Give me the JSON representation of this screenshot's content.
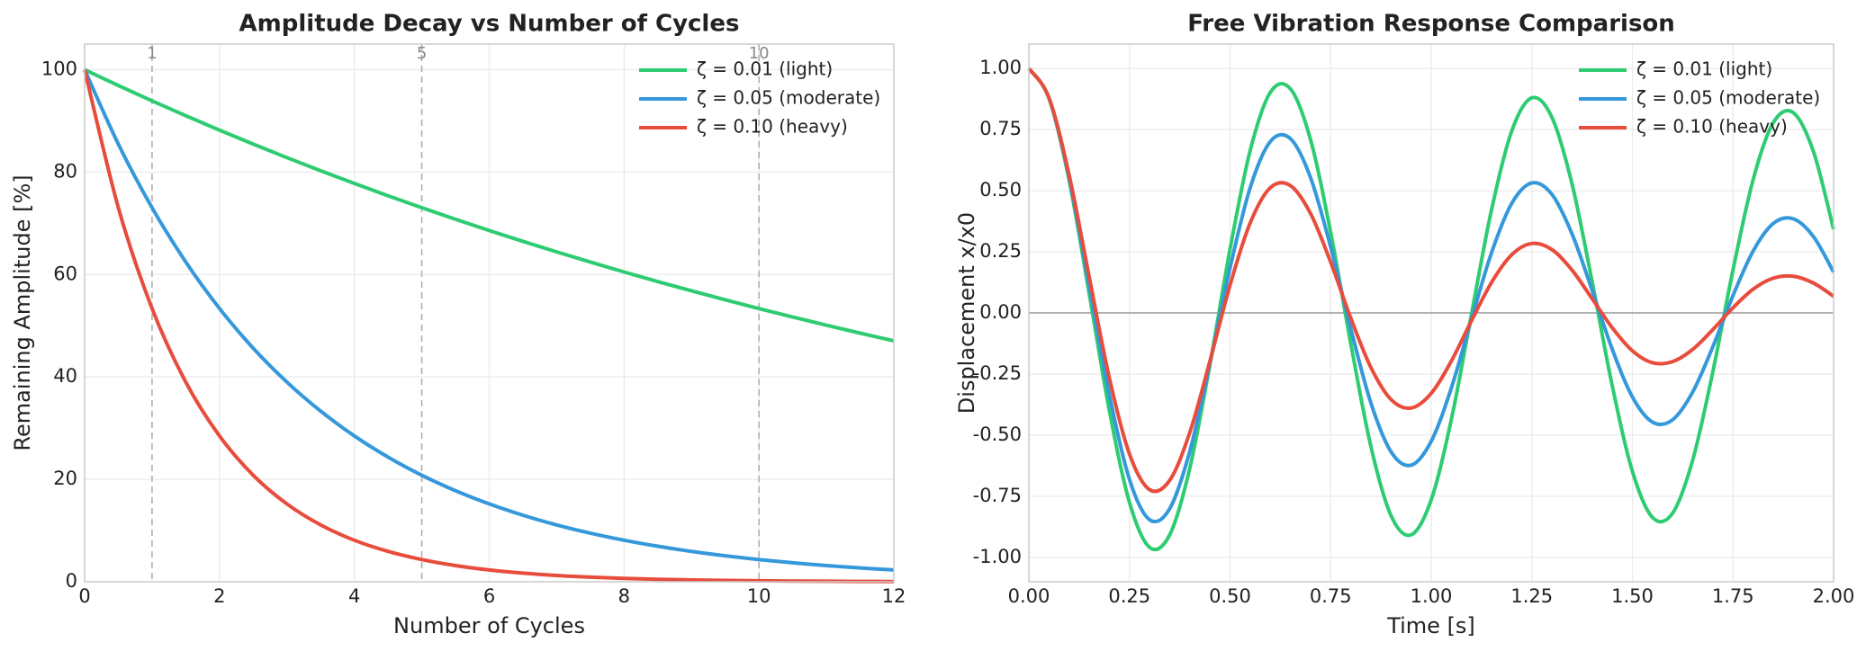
{
  "chart_data": [
    {
      "type": "line",
      "title": "Amplitude Decay vs Number of Cycles",
      "xlabel": "Number of Cycles",
      "ylabel": "Remaining Amplitude [%]",
      "x": [
        0,
        0.5,
        1,
        1.5,
        2,
        2.5,
        3,
        3.5,
        4,
        4.5,
        5,
        5.5,
        6,
        6.5,
        7,
        7.5,
        8,
        8.5,
        9,
        9.5,
        10,
        10.5,
        11,
        11.5,
        12
      ],
      "series": [
        {
          "name": "ζ = 0.01 (light)",
          "color": "#2ecc71",
          "values": [
            100,
            96.91,
            93.91,
            91.01,
            88.19,
            85.47,
            82.82,
            80.26,
            77.78,
            75.38,
            73.04,
            70.78,
            68.59,
            66.47,
            64.42,
            62.43,
            60.49,
            58.62,
            56.81,
            55.05,
            53.35,
            51.7,
            50.1,
            48.55,
            47.05
          ]
        },
        {
          "name": "ζ = 0.05 (moderate)",
          "color": "#3498db",
          "values": [
            100,
            85.47,
            73.05,
            62.44,
            53.37,
            45.61,
            38.99,
            33.32,
            28.48,
            24.34,
            20.8,
            17.78,
            15.2,
            12.99,
            11.1,
            9.49,
            8.11,
            6.93,
            5.93,
            5.07,
            4.33,
            3.7,
            3.16,
            2.7,
            2.31
          ]
        },
        {
          "name": "ζ = 0.10 (heavy)",
          "color": "#e74c3c",
          "values": [
            100,
            73.05,
            53.37,
            38.99,
            28.48,
            20.8,
            15.2,
            11.1,
            8.11,
            5.93,
            4.33,
            3.16,
            2.31,
            1.69,
            1.23,
            0.9,
            0.66,
            0.48,
            0.35,
            0.26,
            0.19,
            0.14,
            0.1,
            0.07,
            0.05
          ]
        }
      ],
      "vlines": [
        1,
        5,
        10
      ],
      "xlim": [
        0,
        12
      ],
      "xticks": [
        0,
        2,
        4,
        6,
        8,
        10,
        12
      ],
      "ylim": [
        0,
        105
      ],
      "yticks": [
        0,
        20,
        40,
        60,
        80,
        100
      ],
      "grid": true,
      "legend": "upper right"
    },
    {
      "type": "line",
      "title": "Free Vibration Response Comparison",
      "xlabel": "Time [s]",
      "ylabel": "Displacement x/x0",
      "x": [
        0,
        0.05,
        0.1,
        0.15,
        0.2,
        0.25,
        0.3,
        0.35,
        0.4,
        0.45,
        0.5,
        0.55,
        0.6,
        0.65,
        0.7,
        0.75,
        0.8,
        0.85,
        0.9,
        0.95,
        1,
        1.05,
        1.1,
        1.15,
        1.2,
        1.25,
        1.3,
        1.35,
        1.4,
        1.45,
        1.5,
        1.55,
        1.6,
        1.65,
        1.7,
        1.75,
        1.8,
        1.85,
        1.9,
        1.95,
        2
      ],
      "series": [
        {
          "name": "ζ = 0.01 (light)",
          "color": "#2ecc71",
          "values": [
            1,
            0.878,
            0.543,
            0.079,
            -0.399,
            -0.775,
            -0.959,
            -0.908,
            -0.635,
            -0.211,
            0.261,
            0.664,
            0.902,
            0.917,
            0.709,
            0.33,
            -0.125,
            -0.546,
            -0.829,
            -0.908,
            -0.764,
            -0.436,
            -0.005,
            0.423,
            0.744,
            0.88,
            0.8,
            0.527,
            0.127,
            -0.299,
            -0.648,
            -0.837,
            -0.819,
            -0.601,
            -0.24,
            0.176,
            0.545,
            0.778,
            0.819,
            0.66,
            0.342
          ]
        },
        {
          "name": "ζ = 0.05 (moderate)",
          "color": "#3498db",
          "values": [
            1,
            0.879,
            0.554,
            0.112,
            -0.335,
            -0.681,
            -0.846,
            -0.801,
            -0.566,
            -0.207,
            0.184,
            0.512,
            0.701,
            0.713,
            0.554,
            0.27,
            -0.064,
            -0.368,
            -0.568,
            -0.623,
            -0.525,
            -0.307,
            -0.026,
            0.247,
            0.448,
            0.532,
            0.485,
            0.323,
            0.092,
            -0.149,
            -0.344,
            -0.447,
            -0.437,
            -0.323,
            -0.138,
            0.071,
            0.253,
            0.366,
            0.385,
            0.312,
            0.167
          ]
        },
        {
          "name": "ζ = 0.10 (heavy)",
          "color": "#e74c3c",
          "values": [
            1,
            0.88,
            0.565,
            0.147,
            -0.266,
            -0.577,
            -0.723,
            -0.685,
            -0.489,
            -0.197,
            0.114,
            0.368,
            0.512,
            0.521,
            0.407,
            0.208,
            -0.021,
            -0.223,
            -0.354,
            -0.389,
            -0.329,
            -0.197,
            -0.032,
            0.125,
            0.238,
            0.284,
            0.259,
            0.175,
            0.058,
            -0.061,
            -0.155,
            -0.204,
            -0.199,
            -0.149,
            -0.068,
            0.021,
            0.097,
            0.142,
            0.15,
            0.122,
            0.068
          ]
        }
      ],
      "hline": 0,
      "xlim": [
        0,
        2
      ],
      "xticks": [
        {
          "value": 0,
          "label": "0.00"
        },
        {
          "value": 0.25,
          "label": "0.25"
        },
        {
          "value": 0.5,
          "label": "0.50"
        },
        {
          "value": 0.75,
          "label": "0.75"
        },
        {
          "value": 1,
          "label": "1.00"
        },
        {
          "value": 1.25,
          "label": "1.25"
        },
        {
          "value": 1.5,
          "label": "1.50"
        },
        {
          "value": 1.75,
          "label": "1.75"
        },
        {
          "value": 2,
          "label": "2.00"
        }
      ],
      "ylim": [
        -1.1,
        1.1
      ],
      "yticks": [
        {
          "value": -1,
          "label": "-1.00"
        },
        {
          "value": -0.75,
          "label": "-0.75"
        },
        {
          "value": -0.5,
          "label": "-0.50"
        },
        {
          "value": -0.25,
          "label": "-0.25"
        },
        {
          "value": 0,
          "label": "0.00"
        },
        {
          "value": 0.25,
          "label": "0.25"
        },
        {
          "value": 0.5,
          "label": "0.50"
        },
        {
          "value": 0.75,
          "label": "0.75"
        },
        {
          "value": 1,
          "label": "1.00"
        }
      ],
      "grid": true,
      "legend": "upper right"
    }
  ]
}
